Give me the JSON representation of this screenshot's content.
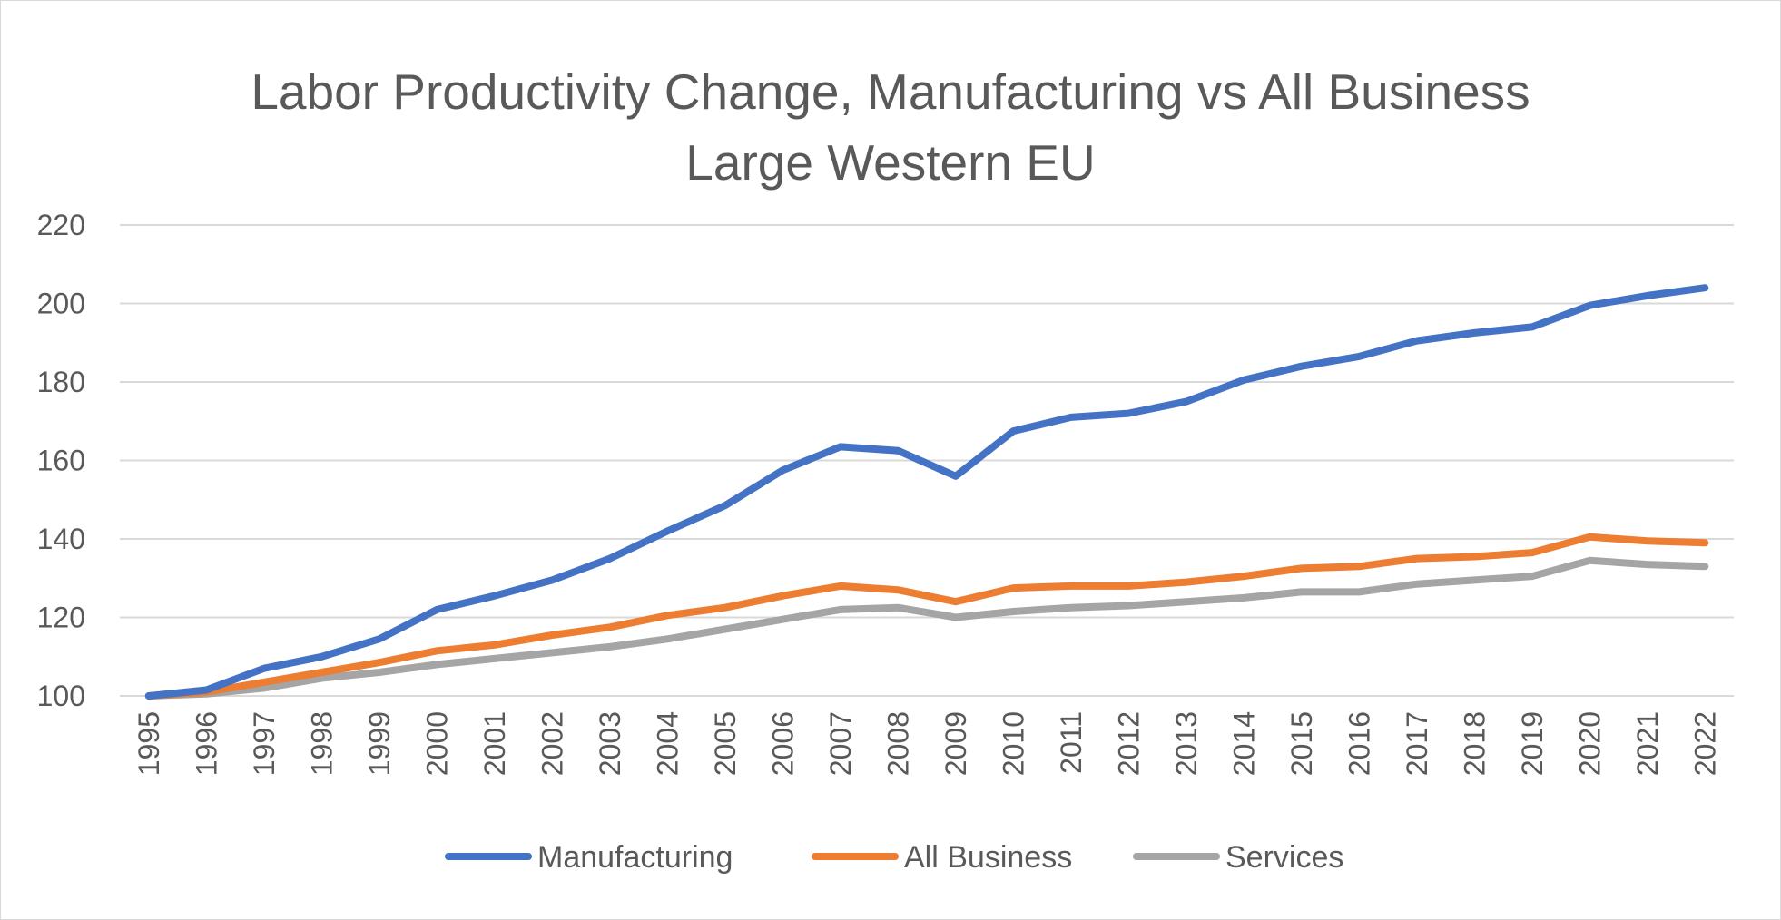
{
  "chart_data": {
    "type": "line",
    "title": "Labor Productivity Change, Manufacturing vs All Business",
    "subtitle": "Large Western EU",
    "xlabel": "",
    "ylabel": "",
    "ylim": [
      100,
      220
    ],
    "yticks": [
      100,
      120,
      140,
      160,
      180,
      200,
      220
    ],
    "grid": true,
    "legend_position": "bottom",
    "categories": [
      "1995",
      "1996",
      "1997",
      "1998",
      "1999",
      "2000",
      "2001",
      "2002",
      "2003",
      "2004",
      "2005",
      "2006",
      "2007",
      "2008",
      "2009",
      "2010",
      "2011",
      "2012",
      "2013",
      "2014",
      "2015",
      "2016",
      "2017",
      "2018",
      "2019",
      "2020",
      "2021",
      "2022"
    ],
    "series": [
      {
        "name": "Manufacturing",
        "color": "#4472c4",
        "values": [
          100,
          101.5,
          107,
          110,
          114.5,
          122,
          125.5,
          129.5,
          135,
          142,
          148.5,
          157.5,
          163.5,
          162.5,
          156,
          167.5,
          171,
          172,
          175,
          180.5,
          184,
          186.5,
          190.5,
          192.5,
          194,
          199.5,
          202,
          204
        ]
      },
      {
        "name": "All Business",
        "color": "#ed7d31",
        "values": [
          100,
          101,
          103.5,
          106,
          108.5,
          111.5,
          113,
          115.5,
          117.5,
          120.5,
          122.5,
          125.5,
          128,
          127,
          124,
          127.5,
          128,
          128,
          129,
          130.5,
          132.5,
          133,
          135,
          135.5,
          136.5,
          140.5,
          139.5,
          139
        ]
      },
      {
        "name": "Services",
        "color": "#a5a5a5",
        "values": [
          100,
          100.5,
          102,
          104.5,
          106,
          108,
          109.5,
          111,
          112.5,
          114.5,
          117,
          119.5,
          122,
          122.5,
          120,
          121.5,
          122.5,
          123,
          124,
          125,
          126.5,
          126.5,
          128.5,
          129.5,
          130.5,
          134.5,
          133.5,
          133
        ]
      }
    ],
    "gridline_color": "#d9d9d9",
    "text_color": "#595959"
  }
}
